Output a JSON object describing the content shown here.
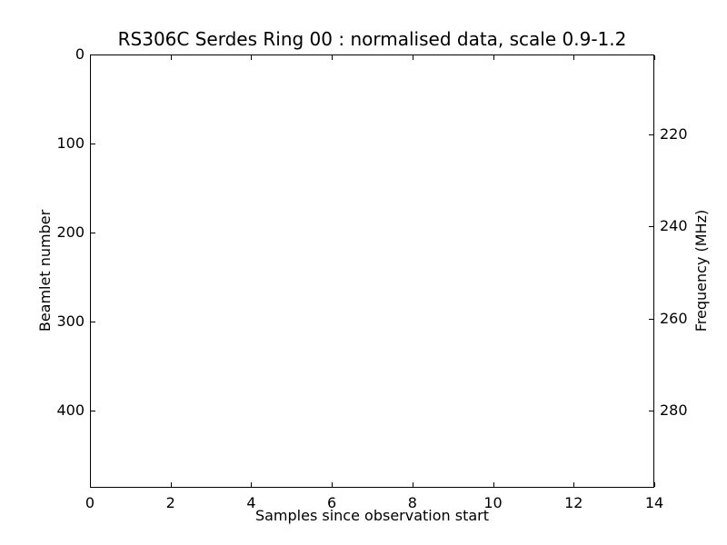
{
  "colors": {
    "background": "#ffffff",
    "foreground": "#000000"
  },
  "chart_data": {
    "type": "heatmap",
    "title": "RS306C Serdes Ring 00 : normalised data, scale 0.9-1.2",
    "xlabel": "Samples since observation start",
    "ylabel_left": "Beamlet number",
    "ylabel_right": "Frequency (MHz)",
    "xlim": [
      0,
      14
    ],
    "ylim_left": [
      0,
      487
    ],
    "ylim_right": [
      202.5,
      296.9
    ],
    "y_left_inverted": true,
    "xticks": [
      0,
      2,
      4,
      6,
      8,
      10,
      12,
      14
    ],
    "yticks_left": [
      0,
      100,
      200,
      300,
      400
    ],
    "yticks_right": [
      220,
      240,
      260,
      280
    ],
    "tick_direction": "in",
    "grid": false,
    "legend": null,
    "normalisation_scale": "0.9-1.2",
    "values": []
  }
}
